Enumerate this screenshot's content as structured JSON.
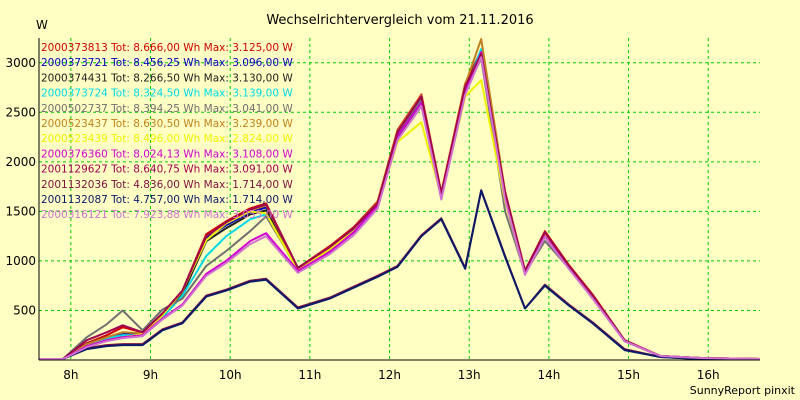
{
  "chart_data": {
    "type": "line",
    "title": "Wechselrichtervergleich vom 21.11.2016",
    "ylabel": "W",
    "footer": "SunnyReport pinxit",
    "background": "#ffffc4",
    "grid": true,
    "grid_color": "#00c800",
    "legend_position": "top-left",
    "xlim": [
      7.6,
      16.65
    ],
    "ylim": [
      0,
      3250
    ],
    "yticks": [
      500,
      1000,
      1500,
      2000,
      2500,
      3000
    ],
    "xticks": [
      {
        "value": 8,
        "label": "8h"
      },
      {
        "value": 9,
        "label": "9h"
      },
      {
        "value": 10,
        "label": "10h"
      },
      {
        "value": 11,
        "label": "11h"
      },
      {
        "value": 12,
        "label": "12h"
      },
      {
        "value": 13,
        "label": "13h"
      },
      {
        "value": 14,
        "label": "14h"
      },
      {
        "value": 15,
        "label": "15h"
      },
      {
        "value": 16,
        "label": "16h"
      }
    ],
    "x": [
      7.6,
      7.9,
      8.2,
      8.45,
      8.65,
      8.9,
      9.15,
      9.4,
      9.7,
      9.95,
      10.25,
      10.45,
      10.85,
      11.25,
      11.55,
      11.85,
      12.1,
      12.4,
      12.65,
      12.95,
      13.15,
      13.45,
      13.7,
      13.95,
      14.25,
      14.55,
      14.95,
      15.4,
      15.9,
      16.65
    ],
    "series": [
      {
        "name": "2000373813",
        "legend": "2000373813 Tot: 8.666,00 Wh Max: 3.125,00 W",
        "color": "#d00000",
        "values": [
          10,
          10,
          170,
          250,
          330,
          280,
          470,
          700,
          1270,
          1400,
          1530,
          1580,
          930,
          1150,
          1340,
          1600,
          2320,
          2680,
          1690,
          2790,
          3125,
          1700,
          900,
          1300,
          960,
          660,
          200,
          40,
          20,
          10
        ]
      },
      {
        "name": "2000373721",
        "legend": "2000373721 Tot: 8.456,25 Wh Max: 3.096,00 W",
        "color": "#0000c0",
        "values": [
          10,
          10,
          160,
          230,
          270,
          260,
          450,
          680,
          1230,
          1360,
          1490,
          1540,
          910,
          1120,
          1310,
          1560,
          2270,
          2620,
          1650,
          2730,
          3096,
          1650,
          880,
          1270,
          940,
          640,
          190,
          40,
          20,
          10
        ]
      },
      {
        "name": "2000374431",
        "legend": "2000374431 Tot: 8.266,50 Wh Max: 3.130,00 W",
        "color": "#202020",
        "values": [
          10,
          10,
          140,
          210,
          240,
          250,
          440,
          660,
          1200,
          1330,
          1470,
          1510,
          900,
          1100,
          1290,
          1550,
          2250,
          2600,
          1640,
          2710,
          3130,
          1640,
          870,
          1260,
          930,
          630,
          190,
          40,
          20,
          10
        ]
      },
      {
        "name": "2000373724",
        "legend": "2000373724 Tot: 8.324,50 Wh Max: 3.139,00 W",
        "color": "#00d8e8",
        "values": [
          10,
          10,
          150,
          220,
          250,
          250,
          430,
          650,
          1050,
          1250,
          1420,
          1470,
          900,
          1100,
          1290,
          1550,
          2260,
          2610,
          1650,
          2720,
          3139,
          1650,
          880,
          1260,
          930,
          630,
          190,
          40,
          20,
          10
        ]
      },
      {
        "name": "2000502737",
        "legend": "2000502737 Tot: 8.394,25 Wh Max: 3.041,00 W",
        "color": "#707070",
        "values": [
          10,
          10,
          230,
          360,
          500,
          300,
          510,
          620,
          950,
          1100,
          1300,
          1450,
          920,
          1100,
          1290,
          1560,
          2280,
          2640,
          1660,
          2720,
          3041,
          1500,
          880,
          1200,
          930,
          620,
          190,
          40,
          20,
          10
        ]
      },
      {
        "name": "2000523437",
        "legend": "2000523437 Tot: 8.630,50 Wh Max: 3.239,00 W",
        "color": "#c08020",
        "values": [
          10,
          10,
          160,
          230,
          280,
          270,
          460,
          690,
          1250,
          1380,
          1510,
          1560,
          920,
          1140,
          1330,
          1590,
          2310,
          2670,
          1680,
          2780,
          3239,
          1700,
          900,
          1290,
          950,
          650,
          200,
          40,
          20,
          10
        ]
      },
      {
        "name": "2000523439",
        "legend": "2000523439 Tot: 8.496,00 Wh Max: 2.824,00 W",
        "color": "#f0f000",
        "values": [
          10,
          10,
          140,
          200,
          230,
          260,
          450,
          700,
          1210,
          1380,
          1500,
          1480,
          900,
          1120,
          1300,
          1550,
          2200,
          2400,
          1640,
          2660,
          2824,
          1600,
          870,
          1260,
          930,
          630,
          190,
          40,
          20,
          10
        ]
      },
      {
        "name": "2000376360",
        "legend": "2000376360 Tot: 8.024,13 Wh Max: 3.108,00 W",
        "color": "#d000d0",
        "values": [
          10,
          10,
          140,
          200,
          230,
          250,
          420,
          560,
          870,
          1000,
          1200,
          1280,
          900,
          1090,
          1290,
          1560,
          2260,
          2600,
          1640,
          2700,
          3108,
          1640,
          870,
          1250,
          930,
          630,
          190,
          40,
          20,
          10
        ]
      },
      {
        "name": "2001129627",
        "legend": "2001129627 Tot: 8.640,75 Wh Max: 3.091,00 W",
        "color": "#a00050",
        "values": [
          10,
          10,
          200,
          280,
          350,
          280,
          470,
          700,
          1250,
          1390,
          1520,
          1570,
          930,
          1140,
          1330,
          1580,
          2300,
          2660,
          1680,
          2760,
          3091,
          1690,
          900,
          1290,
          950,
          650,
          200,
          40,
          20,
          10
        ]
      },
      {
        "name": "2001132036",
        "legend": "2001132036 Tot: 4.836,00 Wh Max: 1.714,00 W",
        "color": "#801040",
        "values": [
          10,
          10,
          120,
          150,
          160,
          160,
          310,
          380,
          650,
          710,
          800,
          820,
          530,
          630,
          740,
          850,
          950,
          1260,
          1430,
          930,
          1714,
          1050,
          520,
          760,
          560,
          380,
          110,
          30,
          10,
          10
        ]
      },
      {
        "name": "2001132087",
        "legend": "2001132087 Tot: 4.757,00 Wh Max: 1.714,00 W",
        "color": "#0a1a6a",
        "values": [
          10,
          10,
          110,
          140,
          150,
          150,
          300,
          370,
          640,
          700,
          790,
          810,
          520,
          620,
          730,
          840,
          940,
          1250,
          1420,
          920,
          1710,
          1040,
          520,
          750,
          550,
          370,
          100,
          30,
          10,
          10
        ]
      },
      {
        "name": "2000316121",
        "legend": "2000316121 Tot: 7.923,88 Wh Max: 3.055,00 W",
        "color": "#d070d0",
        "values": [
          10,
          10,
          130,
          190,
          220,
          240,
          410,
          550,
          850,
          980,
          1170,
          1250,
          880,
          1070,
          1260,
          1530,
          2220,
          2560,
          1620,
          2680,
          3055,
          1620,
          860,
          1240,
          920,
          620,
          190,
          40,
          20,
          10
        ]
      }
    ]
  }
}
